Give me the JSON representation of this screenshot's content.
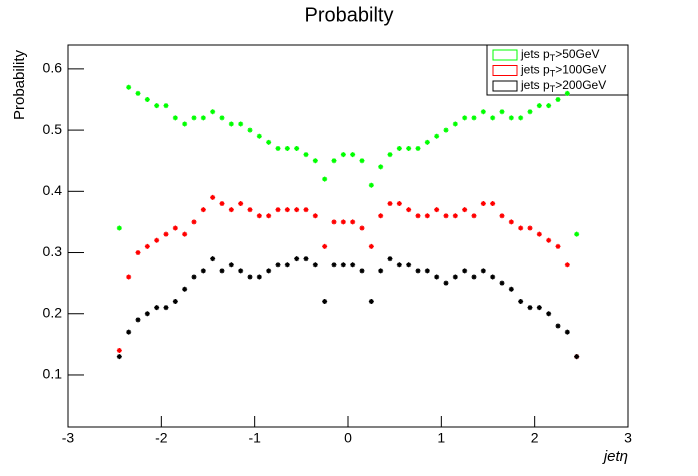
{
  "chart_data": {
    "type": "scatter",
    "title": "Probabilty",
    "xlabel": "jetη",
    "ylabel": "Probability",
    "x": [
      -2.45,
      -2.35,
      -2.25,
      -2.15,
      -2.05,
      -1.95,
      -1.85,
      -1.75,
      -1.65,
      -1.55,
      -1.45,
      -1.35,
      -1.25,
      -1.15,
      -1.05,
      -0.95,
      -0.85,
      -0.75,
      -0.65,
      -0.55,
      -0.45,
      -0.35,
      -0.25,
      -0.15,
      -0.05,
      0.05,
      0.15,
      0.25,
      0.35,
      0.45,
      0.55,
      0.65,
      0.75,
      0.85,
      0.95,
      1.05,
      1.15,
      1.25,
      1.35,
      1.45,
      1.55,
      1.65,
      1.75,
      1.85,
      1.95,
      2.05,
      2.15,
      2.25,
      2.35,
      2.45
    ],
    "series": [
      {
        "name_parts": [
          "jets p",
          "T",
          ">50GeV"
        ],
        "color": "#00ff00",
        "values": [
          0.34,
          0.57,
          0.56,
          0.55,
          0.54,
          0.54,
          0.52,
          0.51,
          0.52,
          0.52,
          0.53,
          0.52,
          0.51,
          0.51,
          0.5,
          0.49,
          0.48,
          0.47,
          0.47,
          0.47,
          0.46,
          0.45,
          0.42,
          0.45,
          0.46,
          0.46,
          0.45,
          0.41,
          0.44,
          0.46,
          0.47,
          0.47,
          0.47,
          0.48,
          0.49,
          0.5,
          0.51,
          0.52,
          0.52,
          0.53,
          0.52,
          0.53,
          0.52,
          0.52,
          0.53,
          0.54,
          0.54,
          0.55,
          0.56,
          0.33
        ]
      },
      {
        "name_parts": [
          "jets p",
          "T",
          ">100GeV"
        ],
        "color": "#ff0000",
        "values": [
          0.14,
          0.26,
          0.3,
          0.31,
          0.32,
          0.33,
          0.34,
          0.33,
          0.35,
          0.37,
          0.39,
          0.38,
          0.37,
          0.38,
          0.37,
          0.36,
          0.36,
          0.37,
          0.37,
          0.37,
          0.37,
          0.36,
          0.31,
          0.35,
          0.35,
          0.35,
          0.34,
          0.31,
          0.36,
          0.38,
          0.38,
          0.37,
          0.36,
          0.36,
          0.37,
          0.36,
          0.36,
          0.37,
          0.36,
          0.38,
          0.38,
          0.36,
          0.35,
          0.34,
          0.34,
          0.33,
          0.32,
          0.31,
          0.28,
          0.13
        ]
      },
      {
        "name_parts": [
          "jets p",
          "T",
          ">200GeV"
        ],
        "color": "#000000",
        "values": [
          0.13,
          0.17,
          0.19,
          0.2,
          0.21,
          0.21,
          0.22,
          0.24,
          0.26,
          0.27,
          0.29,
          0.27,
          0.28,
          0.27,
          0.26,
          0.26,
          0.27,
          0.28,
          0.28,
          0.29,
          0.29,
          0.28,
          0.22,
          0.28,
          0.28,
          0.28,
          0.27,
          0.22,
          0.27,
          0.29,
          0.28,
          0.28,
          0.27,
          0.27,
          0.26,
          0.25,
          0.26,
          0.27,
          0.26,
          0.27,
          0.26,
          0.25,
          0.24,
          0.22,
          0.21,
          0.21,
          0.2,
          0.18,
          0.17,
          0.13
        ]
      }
    ],
    "xlim": [
      -3,
      3
    ],
    "xticks": [
      -3,
      -2,
      -1,
      0,
      1,
      2,
      3
    ],
    "ylim": [
      0.015,
      0.639
    ],
    "yticks": [
      0.1,
      0.2,
      0.3,
      0.4,
      0.5,
      0.6
    ]
  }
}
